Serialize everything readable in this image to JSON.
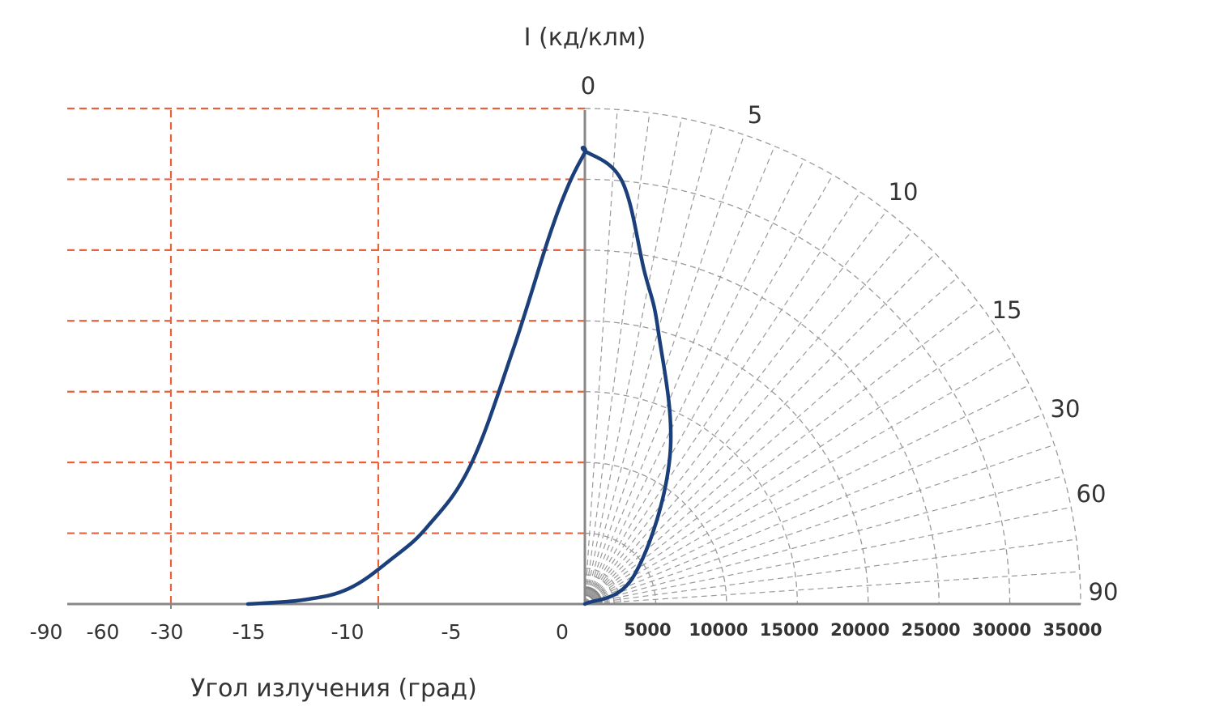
{
  "chart_data": {
    "type": "line",
    "y_axis_title": "I (кд/клм)",
    "x_axis_title": "Угол излучения (град)",
    "left_x_ticks": [
      "-90",
      "-60",
      "-30",
      "-15",
      "-10",
      "-5",
      "0"
    ],
    "right_x_ticks": [
      "5000",
      "10000",
      "15000",
      "20000",
      "25000",
      "30000",
      "35000"
    ],
    "polar_angle_labels": [
      "0",
      "5",
      "10",
      "15",
      "30",
      "60",
      "90"
    ],
    "grid": true,
    "colors": {
      "curve": "#1b3f7a",
      "grid_dashed": "#e8613c",
      "axis": "#888888",
      "polar_grid": "#999999"
    },
    "series": [
      {
        "values_cartesian": [
          {
            "x": -15,
            "y": 0
          },
          {
            "x": -12.5,
            "y": 300
          },
          {
            "x": -10.5,
            "y": 1100
          },
          {
            "x": -8.6,
            "y": 3200
          },
          {
            "x": -7,
            "y": 5500
          },
          {
            "x": -5.1,
            "y": 9800
          },
          {
            "x": -3.2,
            "y": 18000
          },
          {
            "x": -1.6,
            "y": 26000
          },
          {
            "x": -0.7,
            "y": 29800
          },
          {
            "x": 0,
            "y": 32000
          }
        ],
        "values_polar": [
          {
            "angle": 0,
            "intensity": 32000
          },
          {
            "angle": 5,
            "intensity": 30000
          },
          {
            "angle": 10,
            "intensity": 24000
          },
          {
            "angle": 15,
            "intensity": 20000
          },
          {
            "angle": 30,
            "intensity": 12000
          },
          {
            "angle": 60,
            "intensity": 4000
          },
          {
            "angle": 90,
            "intensity": 0
          }
        ]
      }
    ]
  }
}
